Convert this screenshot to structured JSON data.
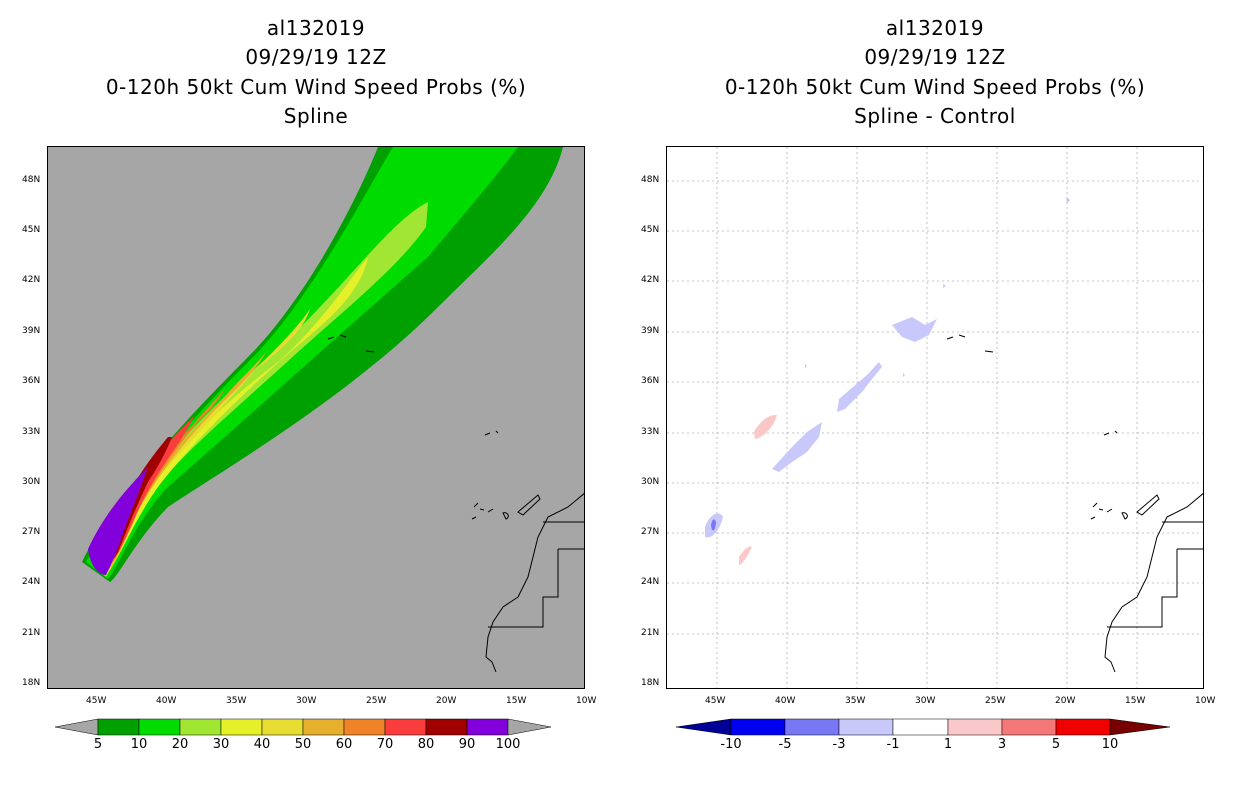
{
  "panels": [
    {
      "id": "left",
      "title_lines": [
        "al132019",
        "09/29/19 12Z",
        "0-120h 50kt Cum Wind Speed Probs (%)",
        "Spline"
      ],
      "lat_ticks": [
        "48N",
        "45N",
        "42N",
        "39N",
        "36N",
        "33N",
        "30N",
        "27N",
        "24N",
        "21N",
        "18N"
      ],
      "lon_ticks": [
        "45W",
        "40W",
        "35W",
        "30W",
        "25W",
        "20W",
        "15W",
        "10W"
      ],
      "background_color": "#a6a6a6",
      "colorbar": {
        "labels": [
          "5",
          "10",
          "20",
          "30",
          "40",
          "50",
          "60",
          "70",
          "80",
          "90",
          "100"
        ],
        "colors": [
          "#00a000",
          "#00dc00",
          "#a0e632",
          "#e6f028",
          "#e6dc32",
          "#e6af2d",
          "#f08228",
          "#fa3c3c",
          "#a00000",
          "#8200dc"
        ],
        "end_color": "#a6a6a6"
      }
    },
    {
      "id": "right",
      "title_lines": [
        "al132019",
        "09/29/19 12Z",
        "0-120h 50kt Cum Wind Speed Probs (%)",
        "Spline - Control"
      ],
      "lat_ticks": [
        "48N",
        "45N",
        "42N",
        "39N",
        "36N",
        "33N",
        "30N",
        "27N",
        "24N",
        "21N",
        "18N"
      ],
      "lon_ticks": [
        "45W",
        "40W",
        "35W",
        "30W",
        "25W",
        "20W",
        "15W",
        "10W"
      ],
      "background_color": "#ffffff",
      "colorbar": {
        "labels": [
          "-10",
          "-5",
          "-3",
          "-1",
          "1",
          "3",
          "5",
          "10"
        ],
        "colors": [
          "#0000f0",
          "#7878f5",
          "#c8c8fa",
          "#ffffff",
          "#fac8c8",
          "#f57878",
          "#f00000"
        ],
        "left_end_color": "#000096",
        "right_end_color": "#780000"
      }
    }
  ]
}
